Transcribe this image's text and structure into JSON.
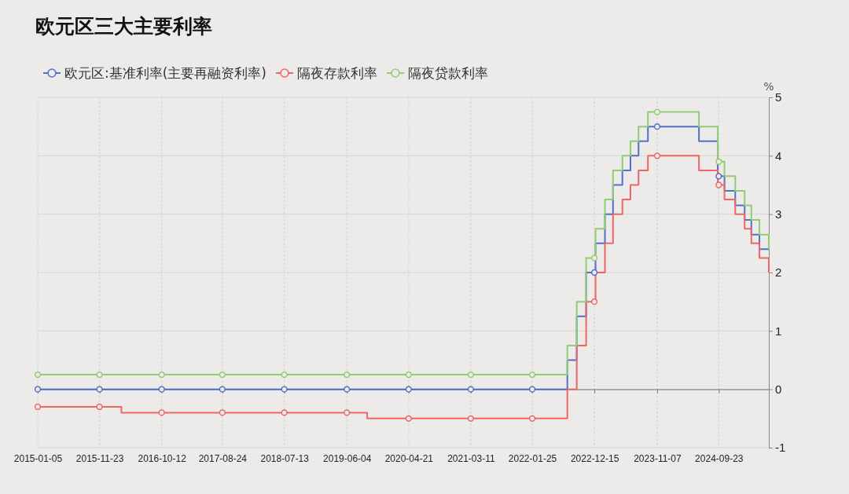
{
  "chart_data": {
    "type": "step",
    "title": "欧元区三大主要利率",
    "ylabel": "%",
    "x": [
      "2015-01-05",
      "2016-03-16",
      "2019-09-18",
      "2022-07-27",
      "2022-09-14",
      "2022-11-02",
      "2022-12-21",
      "2023-02-08",
      "2023-03-22",
      "2023-05-10",
      "2023-06-21",
      "2023-08-02",
      "2023-09-20",
      "2024-06-12",
      "2024-09-18",
      "2024-10-23",
      "2024-12-18",
      "2025-02-05",
      "2025-03-12",
      "2025-04-23",
      "2025-06-11"
    ],
    "series": [
      {
        "name": "欧元区:基准利率(主要再融资利率)",
        "color": "#5470c6",
        "values": [
          0,
          0,
          0,
          0.5,
          1.25,
          2.0,
          2.5,
          3.0,
          3.5,
          3.75,
          4.0,
          4.25,
          4.5,
          4.25,
          3.65,
          3.4,
          3.15,
          2.9,
          2.65,
          2.4,
          2.4
        ]
      },
      {
        "name": "隔夜存款利率",
        "color": "#ee6666",
        "values": [
          -0.3,
          -0.4,
          -0.5,
          0,
          0.75,
          1.5,
          2.0,
          2.5,
          3.0,
          3.25,
          3.5,
          3.75,
          4.0,
          3.75,
          3.5,
          3.25,
          3.0,
          2.75,
          2.5,
          2.25,
          2.0
        ]
      },
      {
        "name": "隔夜贷款利率",
        "color": "#91cc75",
        "values": [
          0.25,
          0.25,
          0.25,
          0.75,
          1.5,
          2.25,
          2.75,
          3.25,
          3.75,
          4.0,
          4.25,
          4.5,
          4.75,
          4.5,
          3.9,
          3.65,
          3.4,
          3.15,
          2.9,
          2.65,
          2.4
        ]
      },
      {
        "type": "scatter",
        "marker": "circle",
        "color": "#5470c6",
        "x": [
          "2015-01-05",
          "2015-11-23",
          "2016-10-12",
          "2017-08-24",
          "2018-07-13",
          "2019-06-04",
          "2020-04-21",
          "2021-03-11",
          "2022-01-25",
          "2022-12-15",
          "2023-11-07",
          "2024-09-23"
        ],
        "values": [
          0,
          0,
          0,
          0,
          0,
          0,
          0,
          0,
          0,
          2.0,
          4.5,
          3.65
        ]
      },
      {
        "type": "scatter",
        "marker": "circle",
        "color": "#ee6666",
        "x": [
          "2015-01-05",
          "2015-11-23",
          "2016-10-12",
          "2017-08-24",
          "2018-07-13",
          "2019-06-04",
          "2020-04-21",
          "2021-03-11",
          "2022-01-25",
          "2022-12-15",
          "2023-11-07",
          "2024-09-23"
        ],
        "values": [
          -0.3,
          -0.3,
          -0.4,
          -0.4,
          -0.4,
          -0.4,
          -0.5,
          -0.5,
          -0.5,
          1.5,
          4.0,
          3.5
        ]
      },
      {
        "type": "scatter",
        "marker": "circle",
        "color": "#91cc75",
        "x": [
          "2015-01-05",
          "2015-11-23",
          "2016-10-12",
          "2017-08-24",
          "2018-07-13",
          "2019-06-04",
          "2020-04-21",
          "2021-03-11",
          "2022-01-25",
          "2022-12-15",
          "2023-11-07",
          "2024-09-23"
        ],
        "values": [
          0.25,
          0.25,
          0.25,
          0.25,
          0.25,
          0.25,
          0.25,
          0.25,
          0.25,
          2.25,
          4.75,
          3.9
        ]
      }
    ],
    "xlim": [
      "2015-01-05",
      "2025-06-11"
    ],
    "xticks": [
      "2015-01-05",
      "2015-11-23",
      "2016-10-12",
      "2017-08-24",
      "2018-07-13",
      "2019-06-04",
      "2020-04-21",
      "2021-03-11",
      "2022-01-25",
      "2022-12-15",
      "2023-11-07",
      "2024-09-23"
    ],
    "ylim": [
      -1,
      5
    ],
    "yticks": [
      -1,
      0,
      1,
      2,
      3,
      4,
      5
    ],
    "grid": true,
    "legend": "top left",
    "line_style": "solid"
  }
}
